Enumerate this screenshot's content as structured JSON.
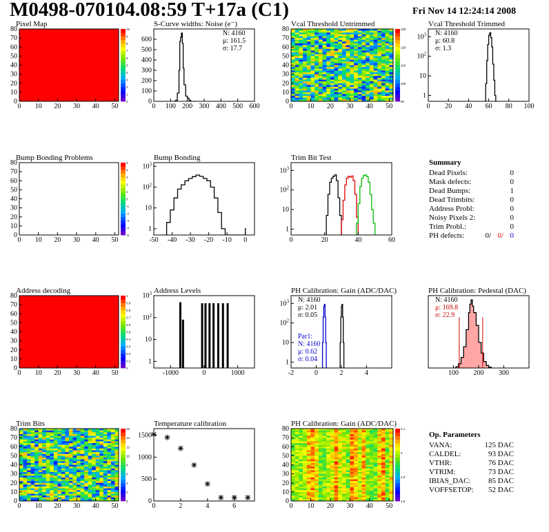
{
  "header": {
    "title": "M0498-070104.08:59 T+17a (C1)",
    "date": "Fri Nov 14 12:24:14 2008"
  },
  "colors": {
    "map_red": "#ff0000",
    "blue_curve": "#0000cc",
    "red_curve": "#dd0000",
    "green_curve": "#00bb00",
    "pedestal_fill": "#ff0000"
  },
  "chart_data": [
    {
      "id": "pixel_map",
      "type": "heatmap",
      "title": "Pixel Map",
      "xlim": [
        0,
        52
      ],
      "ylim": [
        0,
        80
      ],
      "xticks": [
        "0",
        "10",
        "20",
        "30",
        "40",
        "50"
      ],
      "yticks": [
        "0",
        "10",
        "20",
        "30",
        "40",
        "50",
        "60",
        "70",
        "80"
      ],
      "palette_ticks": [
        "0",
        "1",
        "2",
        "3",
        "4",
        "5",
        "6",
        "7",
        "8",
        "9",
        "10"
      ],
      "fill": "uniform",
      "value": 10
    },
    {
      "id": "scurve",
      "type": "line",
      "title": "S-Curve widths: Noise (e⁻)",
      "xlim": [
        0,
        600
      ],
      "ylim": [
        0,
        700
      ],
      "xticks": [
        "0",
        "100",
        "200",
        "300",
        "400",
        "500",
        "600"
      ],
      "yticks": [
        "0",
        "100",
        "200",
        "300",
        "400",
        "500",
        "600"
      ],
      "stats": [
        "N: 4160",
        "μ: 161.5",
        "σ: 17.7"
      ],
      "x": [
        120,
        130,
        140,
        150,
        155,
        160,
        165,
        170,
        175,
        180,
        190,
        200,
        210,
        220
      ],
      "y": [
        0,
        10,
        80,
        300,
        580,
        620,
        660,
        560,
        320,
        160,
        50,
        30,
        10,
        0
      ]
    },
    {
      "id": "vcal_untrimmed",
      "type": "heatmap",
      "title": "Vcal Threshold Untrimmed",
      "xlim": [
        0,
        52
      ],
      "ylim": [
        0,
        80
      ],
      "xticks": [
        "0",
        "10",
        "20",
        "30",
        "40",
        "50"
      ],
      "yticks": [
        "0",
        "10",
        "20",
        "30",
        "40",
        "50",
        "60",
        "70",
        "80"
      ],
      "palette_ticks": [
        "90",
        "100",
        "110",
        "120",
        "130"
      ],
      "fill": "noise",
      "center": 110
    },
    {
      "id": "vcal_trimmed",
      "type": "line",
      "log_y": true,
      "title": "Vcal Threshold Trimmed",
      "xlim": [
        0,
        100
      ],
      "ylim": [
        0.5,
        2500
      ],
      "xticks": [
        "0",
        "20",
        "40",
        "60",
        "80",
        "100"
      ],
      "yticks": [
        "1",
        "10",
        "10²",
        "10³"
      ],
      "stats": [
        "N: 4160",
        "μ: 60.8",
        "σ: 1.3"
      ],
      "x": [
        56,
        57,
        58,
        59,
        60,
        61,
        62,
        63,
        64,
        65,
        66,
        67
      ],
      "y": [
        0.5,
        4,
        60,
        400,
        1200,
        1600,
        900,
        300,
        40,
        6,
        1,
        0.5
      ]
    },
    {
      "id": "bump_problems",
      "type": "heatmap",
      "title": "Bump Bonding Problems",
      "xlim": [
        0,
        52
      ],
      "ylim": [
        0,
        80
      ],
      "xticks": [
        "0",
        "10",
        "20",
        "30",
        "40",
        "50"
      ],
      "yticks": [
        "0",
        "10",
        "20",
        "30",
        "40",
        "50",
        "60",
        "70",
        "80"
      ],
      "palette_ticks": [
        "-5",
        "-4",
        "-3",
        "-2",
        "-1",
        "0",
        "1",
        "2",
        "3",
        "4",
        "5"
      ],
      "fill": "empty"
    },
    {
      "id": "bump_bonding",
      "type": "line",
      "log_y": true,
      "title": "Bump Bonding",
      "xlim": [
        -50,
        5
      ],
      "ylim": [
        0.5,
        1500
      ],
      "xticks": [
        "-50",
        "-40",
        "-30",
        "-20",
        "-10",
        "0"
      ],
      "yticks": [
        "1",
        "10",
        "10²",
        "10³"
      ],
      "x": [
        -45,
        -43,
        -41,
        -39,
        -37,
        -35,
        -33,
        -31,
        -29,
        -27,
        -25,
        -23,
        -21,
        -19,
        -17,
        -15,
        -13,
        -11,
        -1,
        0
      ],
      "y": [
        0.5,
        2,
        8,
        30,
        80,
        130,
        200,
        260,
        320,
        380,
        330,
        260,
        200,
        100,
        30,
        6,
        1,
        0.5,
        0.5,
        1
      ]
    },
    {
      "id": "trim_bits_test",
      "type": "line",
      "log_y": true,
      "title": "Trim Bit Test",
      "xlim": [
        0,
        60
      ],
      "ylim": [
        0.5,
        2500
      ],
      "xticks": [
        "0",
        "20",
        "40",
        "60"
      ],
      "yticks": [
        "1",
        "10",
        "10²",
        "10³"
      ],
      "series": [
        {
          "color": "#000000",
          "x": [
            20,
            21,
            22,
            23,
            24,
            25,
            26,
            27,
            28,
            29,
            30
          ],
          "y": [
            0.5,
            5,
            60,
            250,
            400,
            500,
            600,
            300,
            40,
            5,
            0.5
          ]
        },
        {
          "color": "#dd0000",
          "x": [
            29,
            30,
            31,
            32,
            33,
            34,
            35,
            36,
            37,
            38,
            39,
            40
          ],
          "y": [
            0.5,
            3,
            30,
            180,
            400,
            500,
            450,
            520,
            300,
            60,
            4,
            0.5
          ]
        },
        {
          "color": "#00bb00",
          "x": [
            38,
            39,
            40,
            41,
            42,
            43,
            44,
            45,
            46,
            47,
            48,
            49,
            50
          ],
          "y": [
            0.5,
            2,
            20,
            150,
            400,
            550,
            600,
            480,
            250,
            60,
            10,
            2,
            0.5
          ]
        }
      ]
    },
    {
      "id": "summary",
      "type": "table",
      "title": "Summary",
      "rows": [
        {
          "label": "Dead Pixels:",
          "value": "0"
        },
        {
          "label": "Mask defects:",
          "value": "0"
        },
        {
          "label": "Dead Bumps:",
          "value": "1"
        },
        {
          "label": "Dead Trimbits:",
          "value": "0"
        },
        {
          "label": "Address Probl:",
          "value": "0"
        },
        {
          "label": "Noisy Pixels 2:",
          "value": "0"
        },
        {
          "label": "Trim Probl.:",
          "value": "0"
        }
      ],
      "ph_label": "PH defects:",
      "ph_values": [
        "0/",
        "0/",
        "0"
      ]
    },
    {
      "id": "address_decoding",
      "type": "heatmap",
      "title": "Address decoding",
      "xlim": [
        0,
        52
      ],
      "ylim": [
        0,
        80
      ],
      "xticks": [
        "0",
        "10",
        "20",
        "30",
        "40",
        "50"
      ],
      "yticks": [
        "0",
        "10",
        "20",
        "30",
        "40",
        "50",
        "60",
        "70",
        "80"
      ],
      "palette_ticks": [
        "0",
        "0.1",
        "0.2",
        "0.3",
        "0.4",
        "0.5",
        "0.6",
        "0.7",
        "0.8",
        "0.9",
        "1"
      ],
      "fill": "uniform",
      "value": 1
    },
    {
      "id": "address_levels",
      "type": "bar",
      "log_y": true,
      "title": "Address Levels",
      "xlim": [
        -1500,
        1500
      ],
      "ylim": [
        0.5,
        1000
      ],
      "xticks": [
        "-1000",
        "0",
        "1000"
      ],
      "yticks": [
        "1",
        "10",
        "10²",
        "10³"
      ],
      "x": [
        -710,
        -630,
        -60,
        40,
        160,
        280,
        420,
        560,
        700
      ],
      "y": [
        500,
        80,
        450,
        450,
        450,
        450,
        450,
        450,
        450
      ]
    },
    {
      "id": "ph_gain",
      "type": "line",
      "log_y": true,
      "title": "PH Calibration: Gain (ADC/DAC)",
      "xlim": [
        -2,
        6
      ],
      "ylim": [
        0.5,
        2500
      ],
      "xticks": [
        "-2",
        "0",
        "2",
        "4"
      ],
      "yticks": [
        "1",
        "10",
        "10²",
        "10³"
      ],
      "stats": [
        "N: 4160",
        "μ: 2.01",
        "σ: 0.05"
      ],
      "par1_stats": [
        "Par1:",
        "N: 4160",
        "μ: 0.62",
        "σ: 0.04"
      ],
      "series": [
        {
          "name": "Par1",
          "color": "#0000cc",
          "x": [
            0.45,
            0.5,
            0.55,
            0.6,
            0.65,
            0.7,
            0.75,
            0.8
          ],
          "y": [
            0.5,
            10,
            200,
            700,
            900,
            200,
            10,
            0.5
          ]
        },
        {
          "color": "#000000",
          "x": [
            1.85,
            1.9,
            1.95,
            2.0,
            2.05,
            2.1,
            2.15,
            2.2
          ],
          "y": [
            0.5,
            10,
            200,
            700,
            900,
            200,
            10,
            0.5
          ]
        }
      ]
    },
    {
      "id": "ph_pedestal",
      "type": "area",
      "title": "PH Calibration: Pedestal (DAC)",
      "xlim": [
        0,
        400
      ],
      "ylim": [
        0,
        170
      ],
      "xticks": [
        "100",
        "200",
        "300"
      ],
      "yticks": [],
      "stats": [
        "N: 4160",
        "μ: 169.8",
        "σ: 22.9"
      ],
      "x": [
        100,
        110,
        120,
        130,
        140,
        150,
        160,
        165,
        170,
        175,
        180,
        190,
        200,
        210,
        220,
        230,
        240,
        250
      ],
      "y": [
        0,
        3,
        10,
        25,
        50,
        90,
        130,
        150,
        160,
        145,
        130,
        100,
        60,
        35,
        15,
        6,
        2,
        0
      ],
      "fit_band": [
        123,
        216
      ]
    },
    {
      "id": "trim_bits",
      "type": "heatmap",
      "title": "Trim Bits",
      "xlim": [
        0,
        52
      ],
      "ylim": [
        0,
        80
      ],
      "xticks": [
        "0",
        "10",
        "20",
        "30",
        "40",
        "50"
      ],
      "yticks": [
        "0",
        "10",
        "20",
        "30",
        "40",
        "50",
        "60",
        "70",
        "80"
      ],
      "palette_ticks": [
        "0",
        "2",
        "4",
        "6",
        "8",
        "10",
        "12",
        "14",
        "16"
      ],
      "fill": "noise",
      "center": 9
    },
    {
      "id": "temperature_calibration",
      "type": "scatter",
      "title": "Temperature calibration",
      "xlim": [
        0,
        7.5
      ],
      "ylim": [
        0,
        1650
      ],
      "xticks": [
        "0",
        "2",
        "4",
        "6"
      ],
      "yticks": [
        "0",
        "500",
        "1000",
        "1500"
      ],
      "x": [
        0,
        1,
        2,
        3,
        4,
        5,
        6,
        7
      ],
      "y": [
        1520,
        1450,
        1200,
        820,
        390,
        0,
        0,
        0
      ]
    },
    {
      "id": "ph_gain_map",
      "type": "heatmap",
      "title": "PH Calibration: Gain (ADC/DAC)",
      "xlim": [
        0,
        52
      ],
      "ylim": [
        0,
        80
      ],
      "xticks": [
        "0",
        "10",
        "20",
        "30",
        "40",
        "50"
      ],
      "yticks": [
        "0",
        "10",
        "20",
        "30",
        "40",
        "50",
        "60",
        "70",
        "80"
      ],
      "palette_ticks": [
        "1.8",
        "1.9",
        "2",
        "2.1"
      ],
      "fill": "columns"
    },
    {
      "id": "op_parameters",
      "type": "table",
      "title": "Op. Parameters",
      "rows": [
        {
          "label": "VANA:",
          "value": "125 DAC"
        },
        {
          "label": "CALDEL:",
          "value": "93 DAC"
        },
        {
          "label": "VTHR:",
          "value": "76 DAC"
        },
        {
          "label": "VTRIM:",
          "value": "73 DAC"
        },
        {
          "label": "IBIAS_DAC:",
          "value": "85 DAC"
        },
        {
          "label": "VOFFSETOP:",
          "value": "52 DAC"
        }
      ]
    }
  ]
}
